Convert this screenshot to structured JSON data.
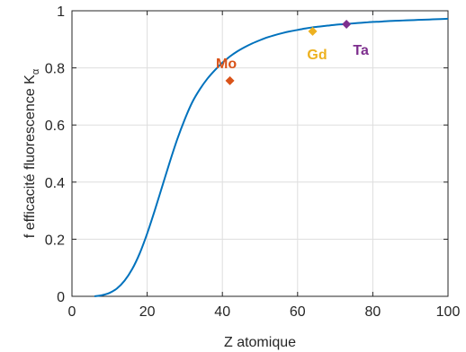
{
  "chart_data": {
    "type": "line",
    "xlabel": "Z atomique",
    "ylabel_main": "f efficacité fluorescence K",
    "ylabel_subscript": "α",
    "xlim": [
      0,
      100
    ],
    "ylim": [
      0,
      1
    ],
    "xticks": [
      0,
      20,
      40,
      60,
      80,
      100
    ],
    "yticks": [
      0,
      0.2,
      0.4,
      0.6,
      0.8,
      1
    ],
    "ytick_labels": [
      "0",
      "0.2",
      "0.4",
      "0.6",
      "0.8",
      "1"
    ],
    "grid": true,
    "series": [
      {
        "color": "#0072bd",
        "x": [
          6,
          8,
          10,
          12,
          14,
          16,
          18,
          20,
          22,
          24,
          26,
          28,
          30,
          32,
          34,
          36,
          38,
          40,
          42,
          44,
          46,
          48,
          50,
          52,
          54,
          56,
          58,
          60,
          62,
          64,
          66,
          68,
          70,
          72,
          74,
          76,
          78,
          80,
          82,
          84,
          86,
          88,
          90,
          92,
          94,
          96,
          98,
          100
        ],
        "y": [
          0.0,
          0.004,
          0.012,
          0.028,
          0.055,
          0.095,
          0.15,
          0.22,
          0.3,
          0.385,
          0.47,
          0.55,
          0.62,
          0.68,
          0.725,
          0.762,
          0.792,
          0.818,
          0.84,
          0.858,
          0.873,
          0.886,
          0.897,
          0.907,
          0.915,
          0.922,
          0.928,
          0.933,
          0.938,
          0.942,
          0.945,
          0.948,
          0.951,
          0.953,
          0.955,
          0.957,
          0.959,
          0.961,
          0.962,
          0.964,
          0.965,
          0.966,
          0.967,
          0.968,
          0.969,
          0.97,
          0.971,
          0.972
        ]
      }
    ],
    "points": [
      {
        "label": "Mo",
        "x": 42,
        "y": 0.755,
        "color": "#d95319"
      },
      {
        "label": "Gd",
        "x": 64,
        "y": 0.928,
        "color": "#edb120"
      },
      {
        "label": "Ta",
        "x": 73,
        "y": 0.953,
        "color": "#7e2f8e"
      }
    ]
  }
}
